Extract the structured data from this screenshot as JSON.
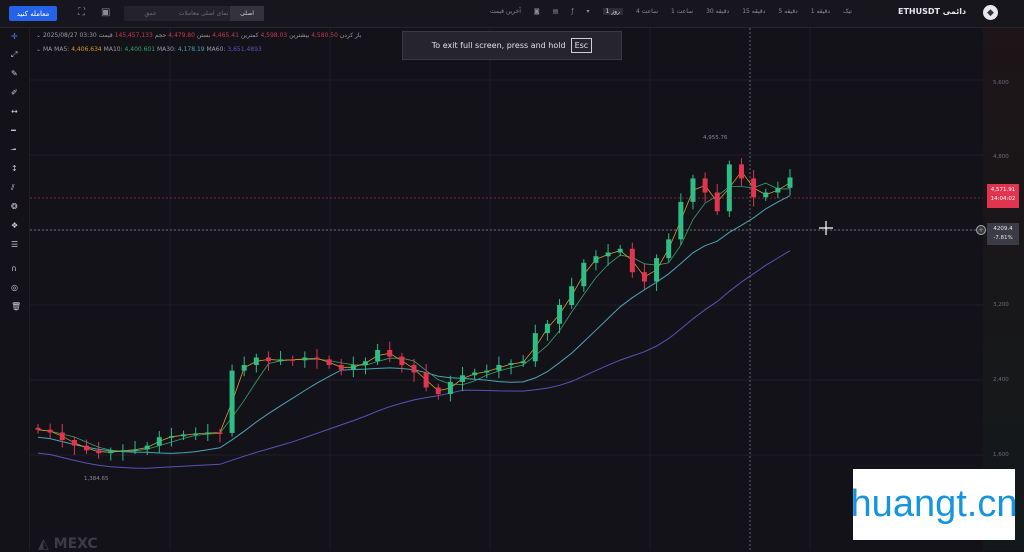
{
  "toolbar": {
    "trade_button": "معامله کنید",
    "view_tabs": [
      "اصلی",
      "نمای اصلی معاملات",
      "عمق"
    ],
    "timeframes": [
      "آخرین قیمت",
      "▾",
      "1 روز",
      "4 ساعت",
      "1 ساعت",
      "30 دقیقه",
      "15 دقیقه",
      "5 دقیقه",
      "1 دقیقه",
      "تیک"
    ],
    "selected_timeframe": "1 روز",
    "symbol": "ETHUSDT دائمی",
    "symbol_icon": "ethereum-logo"
  },
  "legend": {
    "date": "2025/08/27 03:30",
    "open_label": "باز کردن",
    "open": "4,580.50",
    "high_label": "بیشترین",
    "high": "4,598.03",
    "low_label": "کمترین",
    "low": "4,465.41",
    "close_label": "بستن",
    "close": "4,479.80",
    "volume_label": "حجم",
    "volume": "145,457,133",
    "change_label": "قیمت",
    "ma_label": "MA",
    "ma5_label": "MA5:",
    "ma5": "4,406.634",
    "ma10_label": "MA10:",
    "ma10": "4,400.601",
    "ma30_label": "MA30:",
    "ma30": "4,178.19",
    "ma60_label": "MA60:",
    "ma60": "3,651.4893"
  },
  "toast": {
    "text": "To exit full screen, press and hold",
    "key": "Esc"
  },
  "axis": {
    "ticks": [
      "5,600",
      "4,800",
      "3,200",
      "2,400",
      "1,600"
    ],
    "last_price": "4,571.91",
    "countdown": "14:04:02",
    "crosshair_price": "4209.4",
    "crosshair_change": "-7.81%"
  },
  "annotations": {
    "high": "4,955.76",
    "low": "1,384.65"
  },
  "colors": {
    "up": "#2ebd85",
    "down": "#e0344f",
    "ma5": "#d79a2c",
    "ma10": "#3aa06d",
    "ma30": "#4da3b5",
    "ma60": "#5a52b8"
  },
  "chart_data": {
    "type": "candlestick",
    "y_ticks": [
      1600,
      2400,
      3200,
      4800,
      5600
    ],
    "closes": [
      1870,
      1840,
      1760,
      1700,
      1650,
      1620,
      1640,
      1650,
      1660,
      1700,
      1790,
      1800,
      1820,
      1830,
      1840,
      1835,
      2500,
      2560,
      2640,
      2600,
      2620,
      2610,
      2640,
      2620,
      2560,
      2510,
      2560,
      2600,
      2720,
      2650,
      2560,
      2480,
      2320,
      2250,
      2380,
      2450,
      2480,
      2500,
      2560,
      2580,
      2600,
      2900,
      3000,
      3200,
      3400,
      3650,
      3720,
      3760,
      3800,
      3550,
      3450,
      3700,
      3900,
      4300,
      4550,
      4400,
      4200,
      4700,
      4550,
      4350,
      4400,
      4450,
      4560
    ]
  },
  "watermark": "huangt.cn",
  "brand": "MEXC"
}
